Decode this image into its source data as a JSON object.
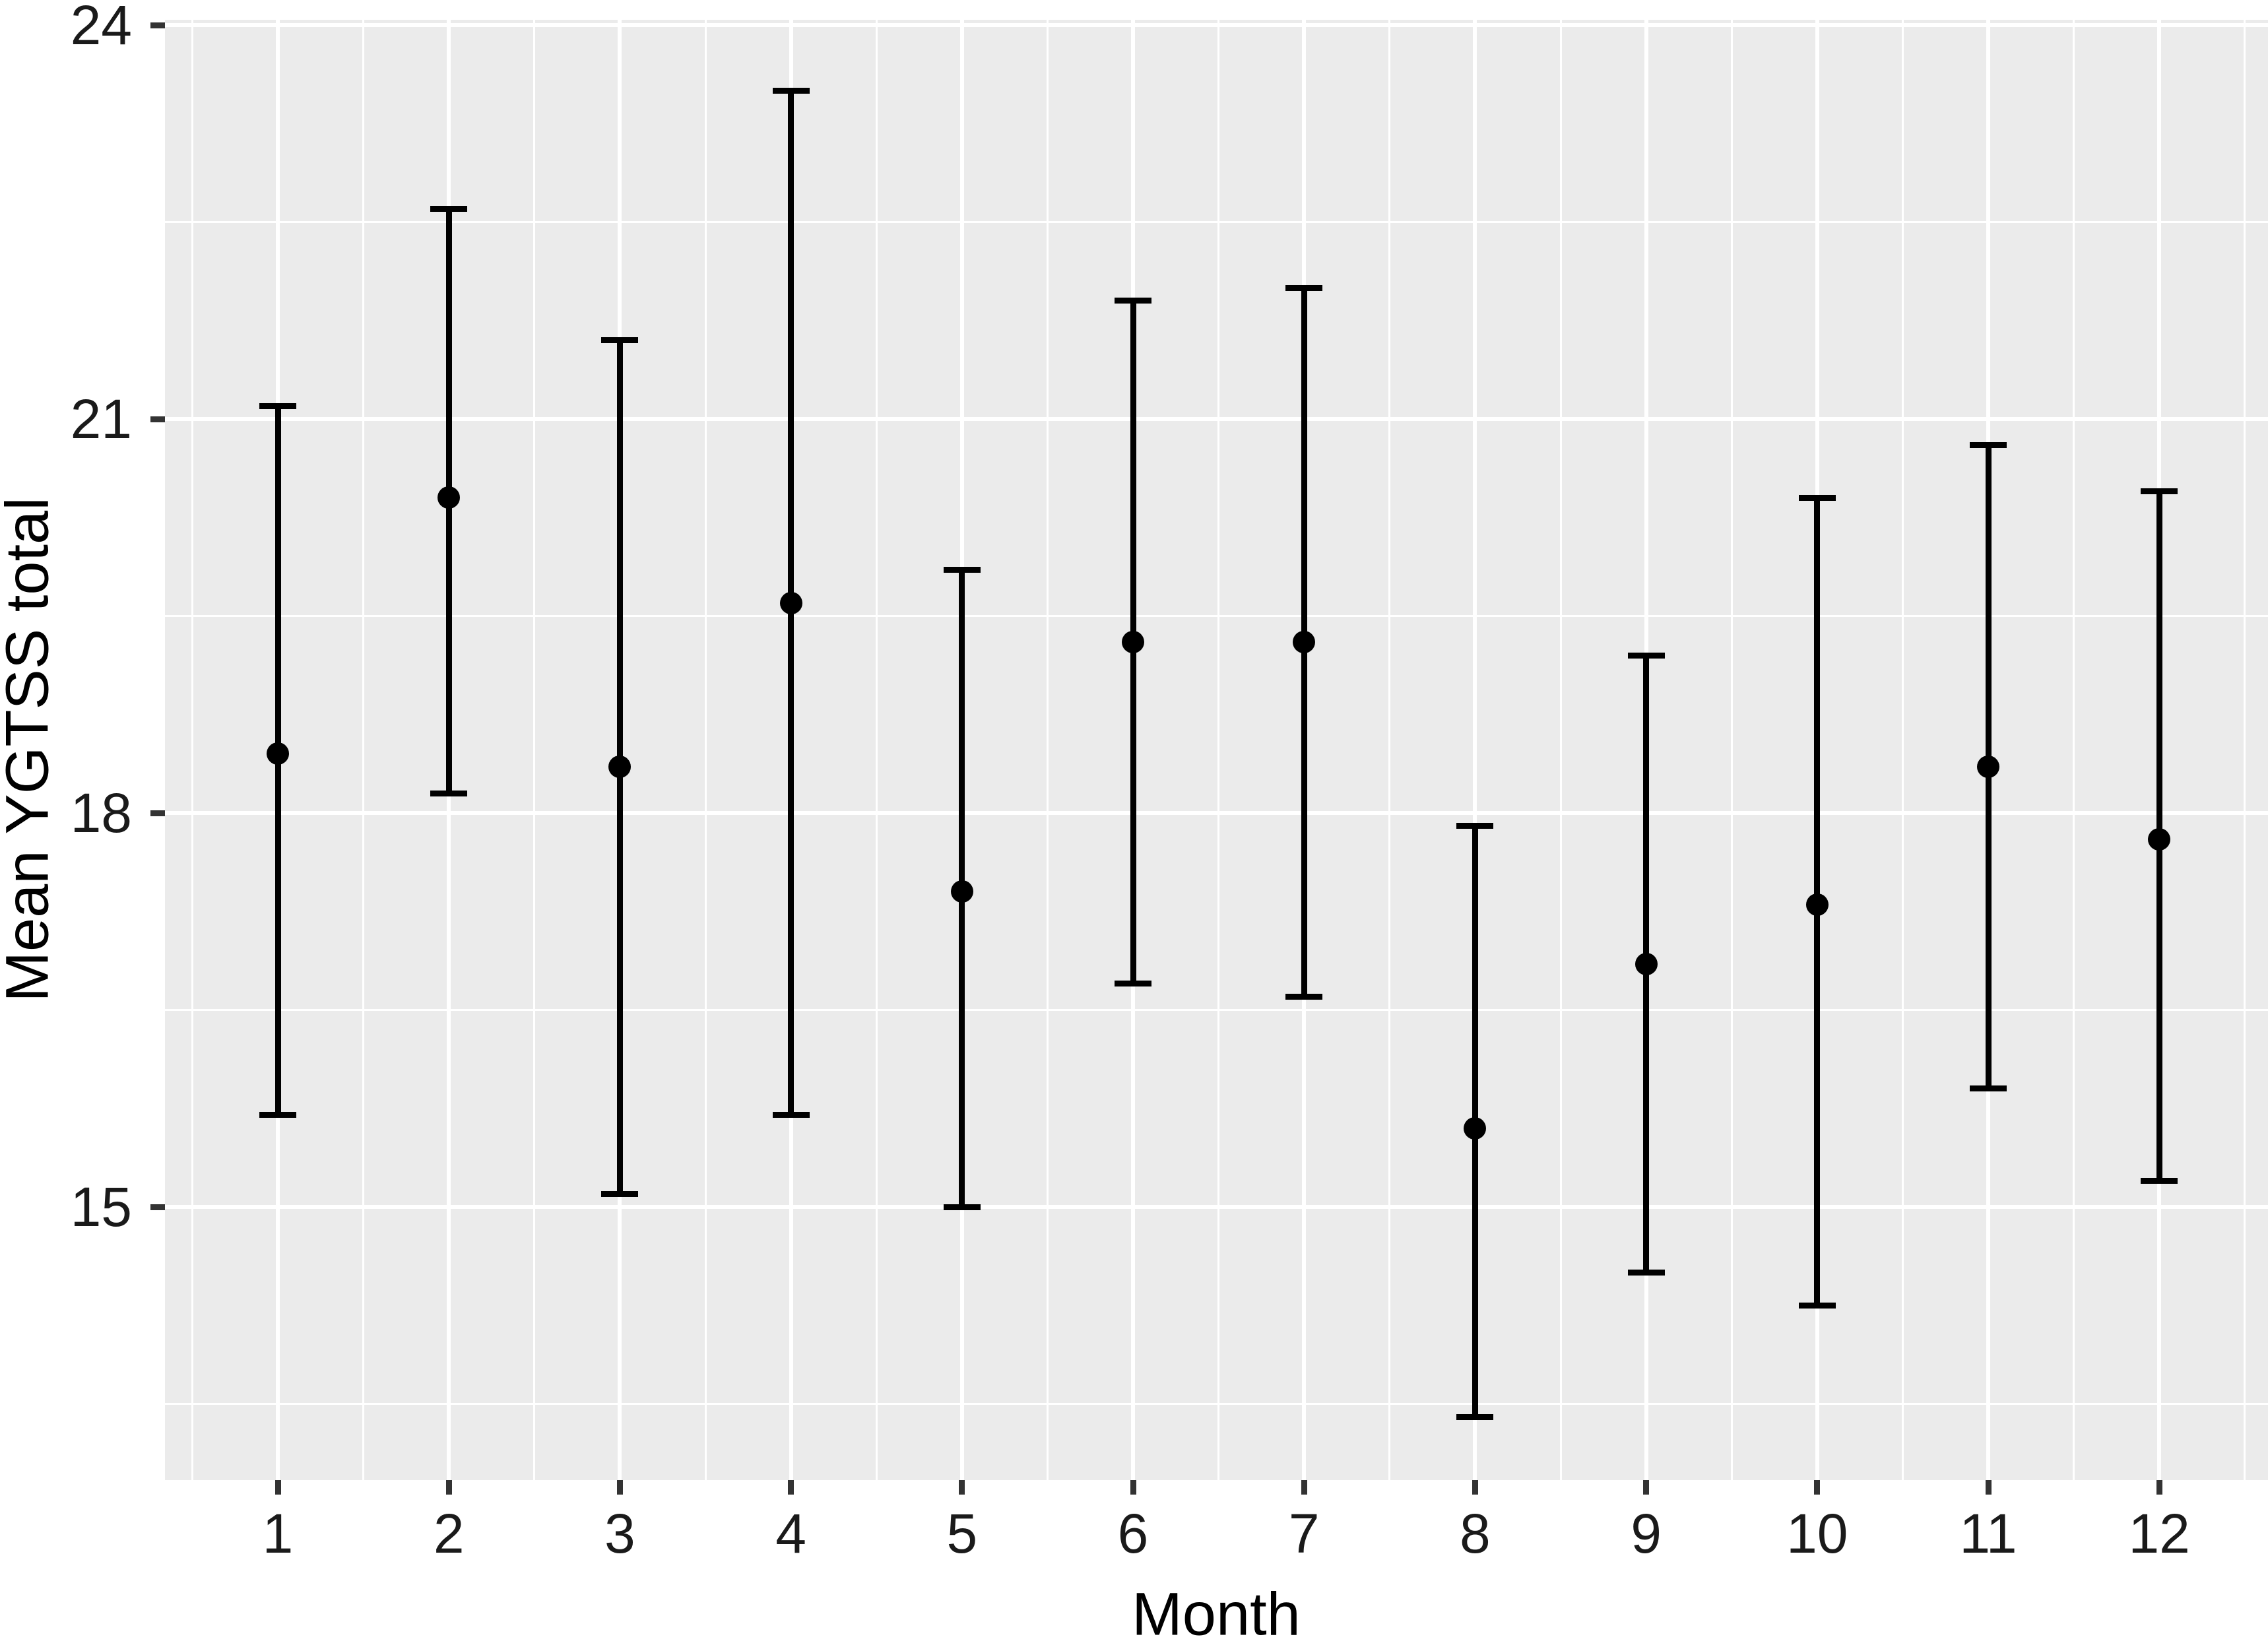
{
  "figure": {
    "background_color": "#ffffff",
    "panel_color": "#EBEBEB",
    "gridline_color": "#ffffff",
    "point_color": "#000000",
    "axis_tick_color": "#333333",
    "axis_text_color": "#1a1a1a"
  },
  "chart_data": {
    "type": "scatter",
    "subtype": "point-estimates-with-error-bars",
    "title": "",
    "xlabel": "Month",
    "ylabel": "Mean YGTSS total",
    "categories": [
      "1",
      "2",
      "3",
      "4",
      "5",
      "6",
      "7",
      "8",
      "9",
      "10",
      "11",
      "12"
    ],
    "x": [
      1,
      2,
      3,
      4,
      5,
      6,
      7,
      8,
      9,
      10,
      11,
      12
    ],
    "means": [
      18.45,
      20.4,
      18.35,
      19.6,
      17.4,
      19.3,
      19.3,
      15.6,
      16.85,
      17.3,
      18.35,
      17.8
    ],
    "ci_low": [
      15.7,
      18.15,
      15.1,
      15.7,
      15.0,
      16.7,
      16.6,
      13.4,
      14.5,
      14.25,
      15.9,
      15.2
    ],
    "ci_high": [
      21.1,
      22.6,
      21.6,
      23.5,
      19.85,
      21.9,
      22.0,
      17.9,
      19.2,
      20.4,
      20.8,
      20.45
    ],
    "y_axis_tick_labels": [
      "15",
      "18",
      "21",
      "24"
    ],
    "y_major_gridlines": [
      15,
      18,
      21,
      24
    ],
    "y_minor_gridlines": [
      13.5,
      16.5,
      19.5,
      22.5
    ],
    "ylim": [
      12.92,
      24.04
    ],
    "xlim": [
      0.34,
      12.64
    ],
    "grid": "on",
    "legend": "none"
  }
}
